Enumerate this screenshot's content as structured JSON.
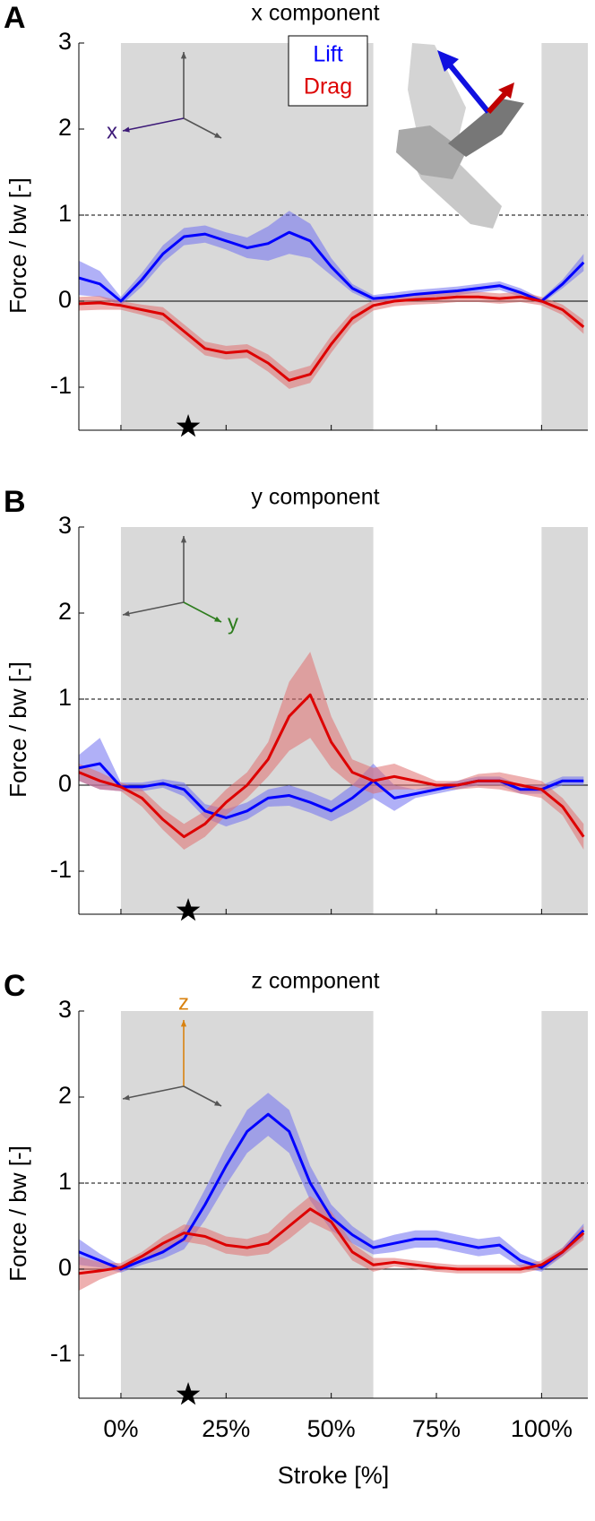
{
  "chart_data": [
    {
      "type": "line",
      "panel": "A",
      "title": "x component",
      "ylabel": "Force / bw [-]",
      "axis_letter": "x",
      "axis_letter_color": "#3d1a78",
      "legend": true,
      "x": [
        -10,
        -5,
        0,
        5,
        10,
        15,
        20,
        25,
        30,
        35,
        40,
        45,
        50,
        55,
        60,
        65,
        70,
        75,
        80,
        85,
        90,
        95,
        100,
        105,
        110
      ],
      "xlim": [
        -10,
        111
      ],
      "ylim": [
        -1.5,
        3
      ],
      "yticks": [
        -1,
        0,
        1,
        2,
        3
      ],
      "xticks": [
        {
          "value": 0,
          "label": "0%"
        },
        {
          "value": 25,
          "label": "25%"
        },
        {
          "value": 50,
          "label": "50%"
        },
        {
          "value": 75,
          "label": "75%"
        },
        {
          "value": 100,
          "label": "100%"
        }
      ],
      "shaded": [
        [
          0,
          60
        ],
        [
          100,
          111
        ]
      ],
      "star_x": 16,
      "solid_line": 0,
      "dashed_line": 1,
      "series": [
        {
          "name": "Lift",
          "color": "#0000ff",
          "band_color": "#7070f0",
          "values": [
            0.27,
            0.2,
            0.0,
            0.25,
            0.55,
            0.75,
            0.78,
            0.7,
            0.62,
            0.67,
            0.8,
            0.7,
            0.4,
            0.15,
            0.03,
            0.05,
            0.08,
            0.1,
            0.12,
            0.15,
            0.18,
            0.1,
            0.0,
            0.2,
            0.45
          ],
          "error": [
            0.2,
            0.15,
            0.05,
            0.08,
            0.1,
            0.1,
            0.1,
            0.1,
            0.12,
            0.2,
            0.25,
            0.2,
            0.1,
            0.05,
            0.04,
            0.05,
            0.05,
            0.05,
            0.05,
            0.05,
            0.05,
            0.05,
            0.03,
            0.05,
            0.1
          ]
        },
        {
          "name": "Drag",
          "color": "#dd0000",
          "band_color": "#e07070",
          "values": [
            -0.03,
            -0.02,
            -0.05,
            -0.1,
            -0.15,
            -0.35,
            -0.55,
            -0.6,
            -0.58,
            -0.72,
            -0.92,
            -0.85,
            -0.5,
            -0.2,
            -0.05,
            0.0,
            0.02,
            0.03,
            0.05,
            0.05,
            0.03,
            0.05,
            0.0,
            -0.1,
            -0.3
          ],
          "error": [
            0.08,
            0.08,
            0.05,
            0.06,
            0.08,
            0.08,
            0.08,
            0.08,
            0.08,
            0.1,
            0.1,
            0.1,
            0.1,
            0.08,
            0.06,
            0.06,
            0.06,
            0.06,
            0.06,
            0.06,
            0.06,
            0.06,
            0.05,
            0.06,
            0.08
          ]
        }
      ]
    },
    {
      "type": "line",
      "panel": "B",
      "title": "y component",
      "ylabel": "Force / bw [-]",
      "axis_letter": "y",
      "axis_letter_color": "#2e7d1e",
      "legend": false,
      "x": [
        -10,
        -5,
        0,
        5,
        10,
        15,
        20,
        25,
        30,
        35,
        40,
        45,
        50,
        55,
        60,
        65,
        70,
        75,
        80,
        85,
        90,
        95,
        100,
        105,
        110
      ],
      "xlim": [
        -10,
        111
      ],
      "ylim": [
        -1.5,
        3
      ],
      "yticks": [
        -1,
        0,
        1,
        2,
        3
      ],
      "xticks": [
        {
          "value": 0,
          "label": "0%"
        },
        {
          "value": 25,
          "label": "25%"
        },
        {
          "value": 50,
          "label": "50%"
        },
        {
          "value": 75,
          "label": "75%"
        },
        {
          "value": 100,
          "label": "100%"
        }
      ],
      "shaded": [
        [
          0,
          60
        ],
        [
          100,
          111
        ]
      ],
      "star_x": 16,
      "solid_line": 0,
      "dashed_line": 1,
      "series": [
        {
          "name": "Lift",
          "color": "#0000ff",
          "band_color": "#7070f0",
          "values": [
            0.2,
            0.25,
            -0.02,
            -0.02,
            0.02,
            -0.05,
            -0.3,
            -0.38,
            -0.3,
            -0.15,
            -0.12,
            -0.2,
            -0.3,
            -0.15,
            0.05,
            -0.15,
            -0.1,
            -0.05,
            0.0,
            0.05,
            0.05,
            -0.05,
            -0.05,
            0.05,
            0.05
          ],
          "error": [
            0.15,
            0.3,
            0.05,
            0.05,
            0.05,
            0.08,
            0.08,
            0.1,
            0.1,
            0.1,
            0.12,
            0.12,
            0.12,
            0.15,
            0.2,
            0.15,
            0.05,
            0.05,
            0.05,
            0.05,
            0.05,
            0.05,
            0.05,
            0.05,
            0.05
          ]
        },
        {
          "name": "Drag",
          "color": "#dd0000",
          "band_color": "#e07070",
          "values": [
            0.15,
            0.05,
            -0.02,
            -0.15,
            -0.4,
            -0.6,
            -0.45,
            -0.2,
            0.0,
            0.3,
            0.8,
            1.05,
            0.5,
            0.15,
            0.05,
            0.1,
            0.05,
            0.0,
            0.0,
            0.05,
            0.05,
            0.0,
            -0.05,
            -0.25,
            -0.6
          ],
          "error": [
            0.1,
            0.1,
            0.05,
            0.1,
            0.12,
            0.15,
            0.15,
            0.15,
            0.15,
            0.2,
            0.4,
            0.5,
            0.3,
            0.15,
            0.15,
            0.15,
            0.1,
            0.05,
            0.05,
            0.08,
            0.1,
            0.1,
            0.1,
            0.1,
            0.15
          ]
        }
      ]
    },
    {
      "type": "line",
      "panel": "C",
      "title": "z component",
      "ylabel": "Force / bw [-]",
      "xlabel": "Stroke [%]",
      "axis_letter": "z",
      "axis_letter_color": "#d9820f",
      "legend": false,
      "show_xtick_labels": true,
      "x": [
        -10,
        -5,
        0,
        5,
        10,
        15,
        20,
        25,
        30,
        35,
        40,
        45,
        50,
        55,
        60,
        65,
        70,
        75,
        80,
        85,
        90,
        95,
        100,
        105,
        110
      ],
      "xlim": [
        -10,
        111
      ],
      "ylim": [
        -1.5,
        3
      ],
      "yticks": [
        -1,
        0,
        1,
        2,
        3
      ],
      "xticks": [
        {
          "value": 0,
          "label": "0%"
        },
        {
          "value": 25,
          "label": "25%"
        },
        {
          "value": 50,
          "label": "50%"
        },
        {
          "value": 75,
          "label": "75%"
        },
        {
          "value": 100,
          "label": "100%"
        }
      ],
      "shaded": [
        [
          0,
          60
        ],
        [
          100,
          111
        ]
      ],
      "star_x": 16,
      "solid_line": 0,
      "dashed_line": 1,
      "series": [
        {
          "name": "Lift",
          "color": "#0000ff",
          "band_color": "#7070f0",
          "values": [
            0.2,
            0.1,
            0.0,
            0.1,
            0.2,
            0.35,
            0.75,
            1.2,
            1.6,
            1.8,
            1.6,
            1.0,
            0.6,
            0.4,
            0.25,
            0.3,
            0.35,
            0.35,
            0.3,
            0.25,
            0.28,
            0.1,
            0.02,
            0.2,
            0.45
          ],
          "error": [
            0.15,
            0.08,
            0.04,
            0.05,
            0.08,
            0.12,
            0.18,
            0.22,
            0.25,
            0.25,
            0.25,
            0.2,
            0.15,
            0.1,
            0.08,
            0.1,
            0.1,
            0.1,
            0.1,
            0.1,
            0.1,
            0.08,
            0.05,
            0.05,
            0.08
          ]
        },
        {
          "name": "Drag",
          "color": "#dd0000",
          "band_color": "#e07070",
          "values": [
            -0.05,
            -0.02,
            0.02,
            0.15,
            0.3,
            0.42,
            0.38,
            0.28,
            0.25,
            0.3,
            0.5,
            0.7,
            0.55,
            0.2,
            0.05,
            0.08,
            0.05,
            0.02,
            0.0,
            0.0,
            0.0,
            0.0,
            0.05,
            0.2,
            0.42
          ],
          "error": [
            0.2,
            0.1,
            0.05,
            0.05,
            0.08,
            0.1,
            0.1,
            0.1,
            0.1,
            0.12,
            0.15,
            0.15,
            0.12,
            0.1,
            0.08,
            0.05,
            0.05,
            0.05,
            0.05,
            0.05,
            0.05,
            0.05,
            0.05,
            0.05,
            0.08
          ]
        }
      ]
    }
  ]
}
